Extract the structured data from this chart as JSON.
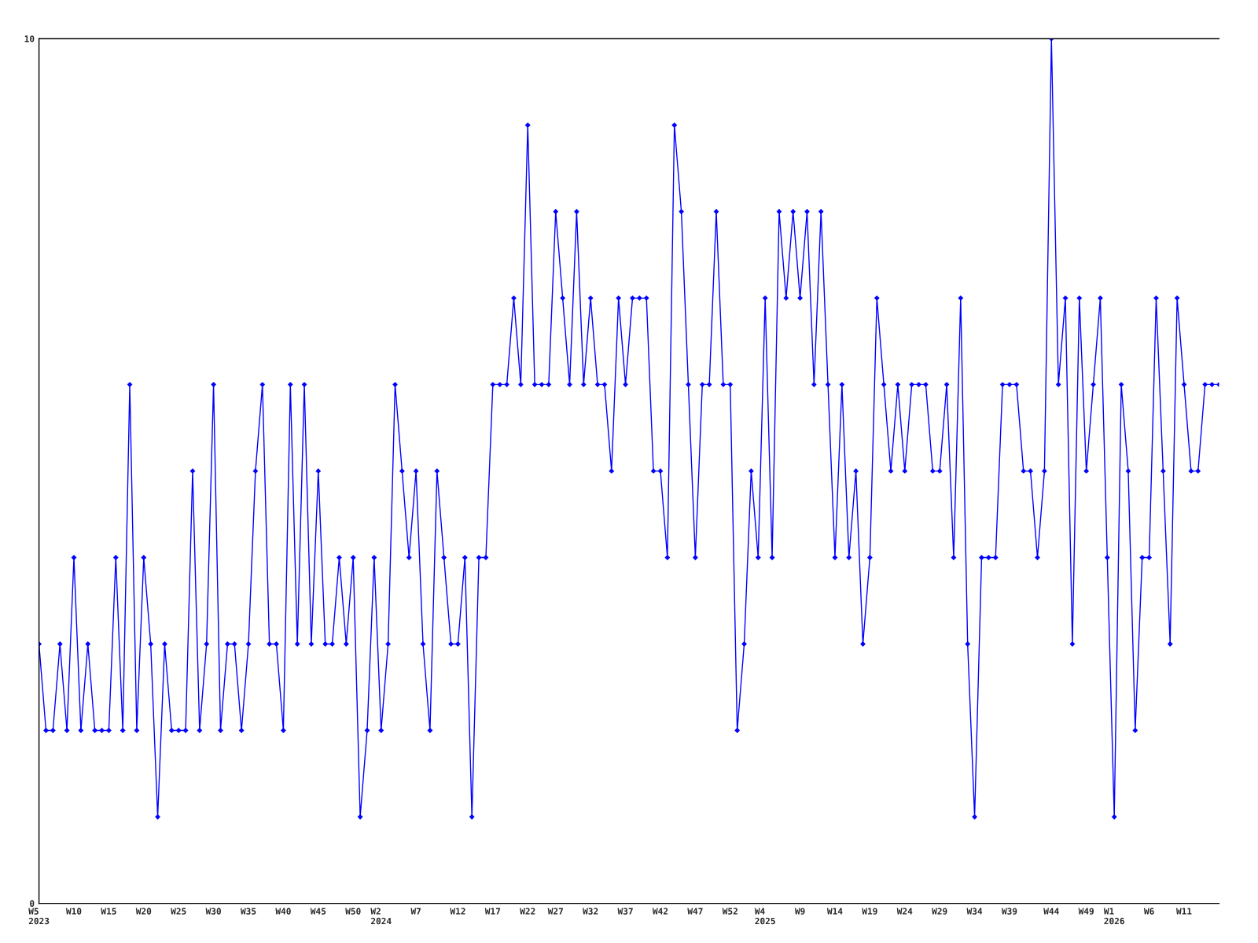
{
  "chart_data": {
    "type": "line",
    "categories": [
      "W5\n2023",
      null,
      null,
      null,
      null,
      "W10",
      null,
      null,
      null,
      null,
      "W15",
      null,
      null,
      null,
      null,
      "W20",
      null,
      null,
      null,
      null,
      "W25",
      null,
      null,
      null,
      null,
      "W30",
      null,
      null,
      null,
      null,
      "W35",
      null,
      null,
      null,
      null,
      "W40",
      null,
      null,
      null,
      null,
      "W45",
      null,
      null,
      null,
      null,
      "W50",
      null,
      null,
      null,
      "W2\n2024",
      null,
      null,
      null,
      null,
      "W7",
      null,
      null,
      null,
      null,
      null,
      "W12",
      null,
      null,
      null,
      null,
      "W17",
      null,
      null,
      null,
      null,
      "W22",
      null,
      null,
      null,
      "W27",
      null,
      null,
      null,
      null,
      "W32",
      null,
      null,
      null,
      null,
      "W37",
      null,
      null,
      null,
      null,
      "W42",
      null,
      null,
      null,
      null,
      "W47",
      null,
      null,
      null,
      null,
      "W52",
      null,
      null,
      null,
      null,
      "W4\n2025",
      null,
      null,
      null,
      null,
      "W9",
      null,
      null,
      null,
      null,
      "W14",
      null,
      null,
      null,
      null,
      "W19",
      null,
      null,
      null,
      null,
      "W24",
      null,
      null,
      null,
      null,
      "W29",
      null,
      null,
      null,
      null,
      "W34",
      null,
      null,
      null,
      null,
      "W39",
      null,
      null,
      null,
      null,
      null,
      "W44",
      null,
      null,
      null,
      null,
      "W49",
      null,
      null,
      null,
      "W1\n2026",
      null,
      null,
      null,
      null,
      "W6",
      null,
      null,
      null,
      null,
      "W11",
      null,
      null,
      null,
      null,
      null
    ],
    "series": [
      {
        "color": "#0000ff",
        "values": [
          3,
          2,
          2,
          3,
          2,
          4,
          2,
          3,
          2,
          2,
          2,
          4,
          2,
          6,
          2,
          4,
          3,
          1,
          3,
          2,
          2,
          2,
          5,
          2,
          3,
          6,
          2,
          3,
          3,
          2,
          3,
          5,
          6,
          3,
          3,
          2,
          6,
          3,
          6,
          3,
          5,
          3,
          3,
          4,
          3,
          4,
          1,
          2,
          4,
          2,
          3,
          6,
          5,
          4,
          5,
          3,
          2,
          5,
          4,
          3,
          3,
          4,
          1,
          4,
          4,
          6,
          6,
          6,
          7,
          6,
          9,
          6,
          6,
          6,
          8,
          7,
          6,
          8,
          6,
          7,
          6,
          6,
          5,
          7,
          6,
          7,
          7,
          7,
          5,
          5,
          4,
          9,
          8,
          6,
          4,
          6,
          6,
          8,
          6,
          6,
          2,
          3,
          5,
          4,
          7,
          4,
          8,
          7,
          8,
          7,
          8,
          6,
          8,
          6,
          4,
          6,
          4,
          5,
          3,
          4,
          7,
          6,
          5,
          6,
          5,
          6,
          6,
          6,
          5,
          5,
          6,
          4,
          7,
          3,
          1,
          4,
          4,
          4,
          6,
          6,
          6,
          5,
          5,
          4,
          5,
          10,
          6,
          7,
          3,
          7,
          5,
          6,
          7,
          4,
          1,
          6,
          5,
          2,
          4,
          4,
          7,
          5,
          3,
          7,
          6,
          5,
          5,
          6,
          6,
          6
        ]
      }
    ],
    "ylim": [
      0,
      10
    ],
    "yticks": [
      0,
      10
    ],
    "marker": "diamond",
    "line_style": "solid"
  }
}
